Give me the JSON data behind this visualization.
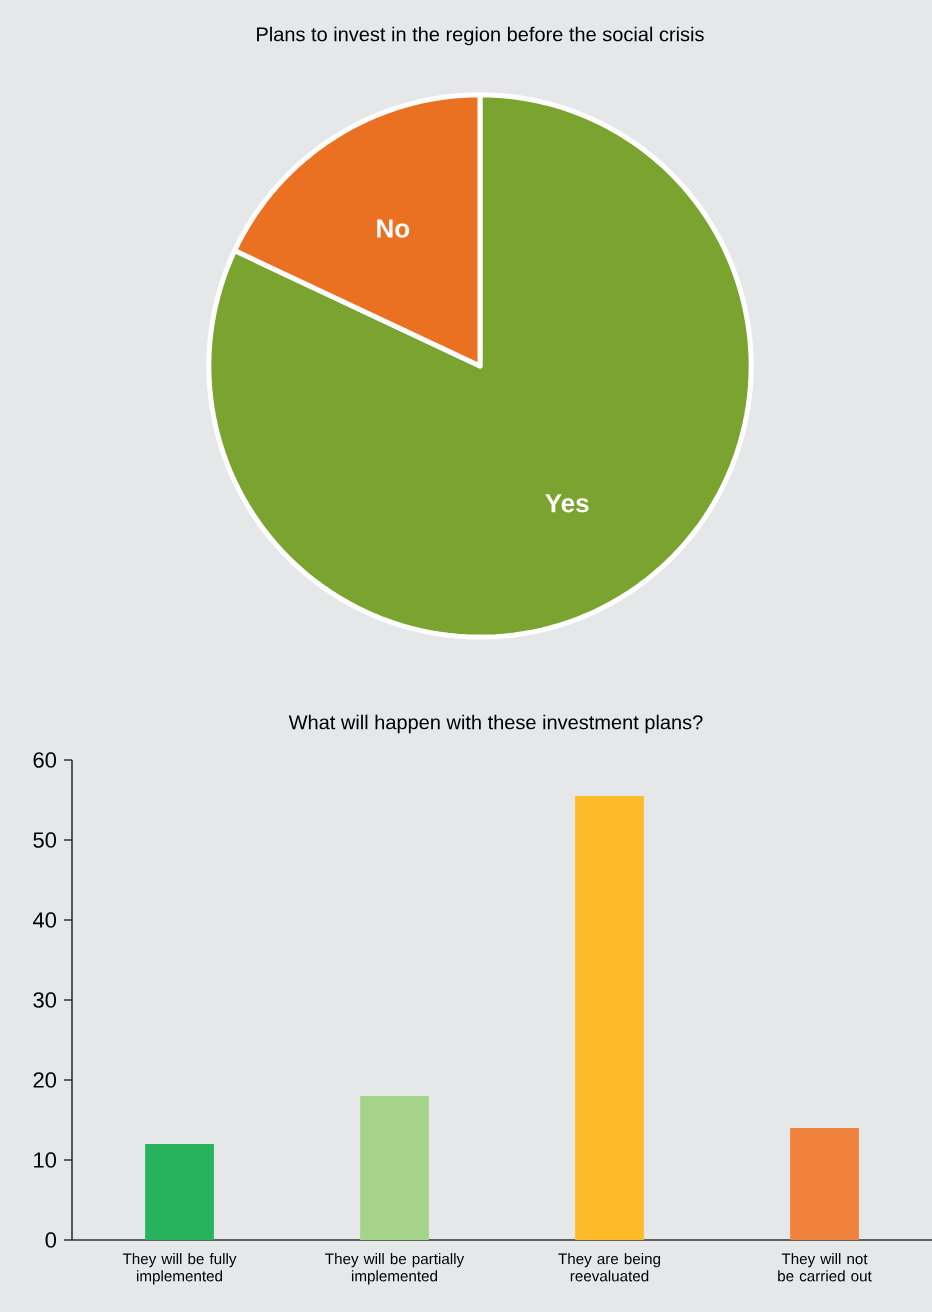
{
  "chart_data": [
    {
      "type": "pie",
      "title": "Plans to invest in the region before the social crisis",
      "categories": [
        "Yes",
        "No"
      ],
      "values": [
        82,
        18
      ],
      "colors": [
        "#7aa32f",
        "#ea7022"
      ]
    },
    {
      "type": "bar",
      "title": "What will happen with these investment plans?",
      "categories": [
        "They will be fully implemented",
        "They will be partially implemented",
        "They are being reevaluated",
        "They will not be carried out"
      ],
      "values": [
        12,
        18,
        55.5,
        14
      ],
      "colors": [
        "#27b35c",
        "#a6d38a",
        "#fdbb29",
        "#f1823d"
      ],
      "ylim": [
        0,
        60
      ],
      "yticks": [
        0,
        10,
        20,
        30,
        40,
        50,
        60
      ]
    }
  ]
}
